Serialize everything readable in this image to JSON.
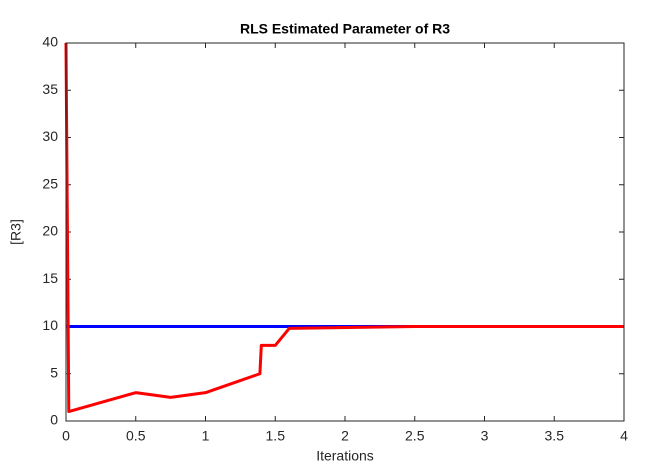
{
  "chart_data": {
    "type": "line",
    "title": "RLS Estimated Parameter of R3",
    "xlabel": "Iterations",
    "ylabel": "[R3]",
    "series": [
      {
        "color": "#0000ff",
        "x": [
          0,
          4
        ],
        "values": [
          10,
          10
        ]
      },
      {
        "color": "#ff0000",
        "x": [
          0,
          0.02,
          0.5,
          0.75,
          1,
          1.39,
          1.4,
          1.5,
          1.6,
          2.5,
          4
        ],
        "values": [
          40,
          1,
          3,
          2.5,
          3,
          5,
          8,
          8,
          9.8,
          10,
          10
        ]
      }
    ],
    "xlim": [
      0,
      4
    ],
    "xticks": [
      0,
      0.5,
      1,
      1.5,
      2,
      2.5,
      3,
      3.5,
      4
    ],
    "ylim": [
      0,
      40
    ],
    "yticks": [
      0,
      5,
      10,
      15,
      20,
      25,
      30,
      35,
      40
    ],
    "grid": false
  }
}
